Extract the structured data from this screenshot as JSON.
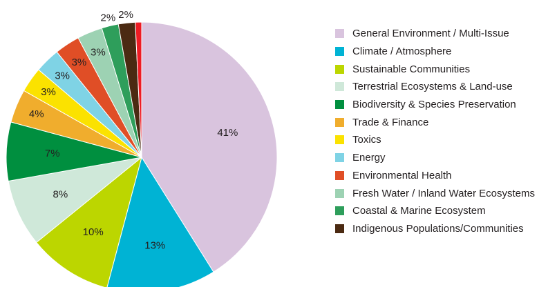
{
  "chart_data": {
    "type": "pie",
    "title": "",
    "legend_position": "right",
    "slices": [
      {
        "label": "General Environment / Multi-Issue",
        "value": 41,
        "display": "41%",
        "color": "#d9c4de",
        "in_legend": true
      },
      {
        "label": "Climate / Atmosphere",
        "value": 13,
        "display": "13%",
        "color": "#00b3d4",
        "in_legend": true
      },
      {
        "label": "Sustainable Communities",
        "value": 10,
        "display": "10%",
        "color": "#bcd600",
        "in_legend": true
      },
      {
        "label": "Terrestrial Ecosystems & Land-use",
        "value": 8,
        "display": "8%",
        "color": "#cfe8d9",
        "in_legend": true
      },
      {
        "label": "Biodiversity & Species Preservation",
        "value": 7,
        "display": "7%",
        "color": "#008f3f",
        "in_legend": true
      },
      {
        "label": "Trade & Finance",
        "value": 4,
        "display": "4%",
        "color": "#f0ad2d",
        "in_legend": true
      },
      {
        "label": "Toxics",
        "value": 3,
        "display": "3%",
        "color": "#fbe200",
        "in_legend": true
      },
      {
        "label": "Energy",
        "value": 3,
        "display": "3%",
        "color": "#7fd3e5",
        "in_legend": true
      },
      {
        "label": "Environmental Health",
        "value": 3,
        "display": "3%",
        "color": "#e04e26",
        "in_legend": true
      },
      {
        "label": "Fresh Water / Inland Water Ecosystems",
        "value": 3,
        "display": "3%",
        "color": "#9dd2b3",
        "in_legend": true
      },
      {
        "label": "Coastal & Marine Ecosystem",
        "value": 2,
        "display": "2%",
        "color": "#2e9e5b",
        "in_legend": true
      },
      {
        "label": "Indigenous Populations/Communities",
        "value": 2,
        "display": "2%",
        "color": "#4b2a12",
        "in_legend": true
      },
      {
        "label": "",
        "value": 0.75,
        "display": "",
        "color": "#ed1c24",
        "in_legend": false
      }
    ]
  }
}
